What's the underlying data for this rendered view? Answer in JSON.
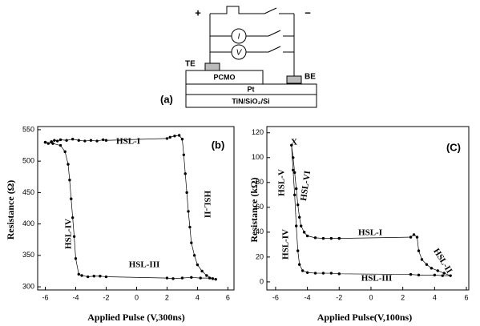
{
  "diagram": {
    "label": "(a)",
    "plus": "+",
    "minus": "−",
    "current": "I",
    "voltage": "V",
    "top_electrode": "TE",
    "bottom_electrode": "BE",
    "layers": [
      "PCMO",
      "Pt",
      "TiN/SiO₂/Si"
    ]
  },
  "chart_data": [
    {
      "type": "line",
      "label": "(b)",
      "xlabel": "Applied Pulse (V,300ns)",
      "ylabel": "Resistance (Ω)",
      "color": "#000000",
      "annotations": [
        "HSL-I",
        "HSL-II",
        "HSL-III",
        "HSL-IV"
      ],
      "xlim": [
        -6.5,
        6.4
      ],
      "xticks": [
        -6,
        -4,
        -2,
        0,
        2,
        4,
        6
      ],
      "ylim": [
        295,
        555
      ],
      "yticks": [
        300,
        350,
        400,
        450,
        500,
        550
      ],
      "x": [
        -6.0,
        -5.8,
        -5.6,
        -5.4,
        -5.2,
        -5.0,
        -4.6,
        -4.2,
        -3.8,
        -3.4,
        -3.0,
        -2.6,
        -2.2,
        -2.0,
        2.0,
        2.2,
        2.5,
        2.8,
        3.0,
        3.1,
        3.2,
        3.3,
        3.4,
        3.5,
        3.6,
        3.8,
        4.0,
        4.3,
        4.6,
        5.0,
        5.2,
        4.8,
        4.2,
        3.6,
        3.0,
        2.4,
        2.0,
        -2.0,
        -2.4,
        -2.8,
        -3.2,
        -3.6,
        -3.8,
        -4.0,
        -4.1,
        -4.2,
        -4.3,
        -4.4,
        -4.5,
        -4.7,
        -5.0,
        -5.5,
        -6.0
      ],
      "values": [
        530,
        528,
        531,
        533,
        532,
        534,
        533,
        535,
        533,
        532,
        533,
        532,
        534,
        533,
        536,
        538,
        540,
        541,
        535,
        510,
        480,
        450,
        420,
        395,
        370,
        350,
        335,
        325,
        318,
        313,
        312,
        314,
        314,
        315,
        314,
        313,
        314,
        316,
        317,
        317,
        316,
        318,
        320,
        345,
        380,
        410,
        440,
        470,
        495,
        515,
        525,
        528,
        530
      ]
    },
    {
      "type": "line",
      "label": "(C)",
      "xlabel": "Applied Pulse(V,100ns)",
      "ylabel": "Resistance (kΩ)",
      "color": "#000000",
      "annotations": [
        "X",
        "HSL-V",
        "HSL-VI",
        "HSL-I",
        "HSL-II",
        "HSL-III",
        "HSL-IV"
      ],
      "xlim": [
        -6.55,
        6.15
      ],
      "xticks": [
        -6,
        -4,
        -2,
        0,
        2,
        4,
        6
      ],
      "ylim": [
        -6.5,
        125
      ],
      "yticks": [
        0,
        20,
        40,
        60,
        80,
        100,
        120
      ],
      "x": [
        -2.0,
        2.5,
        2.7,
        2.9,
        3.0,
        3.2,
        3.5,
        3.8,
        4.2,
        4.6,
        5.0,
        4.5,
        4.0,
        3.0,
        2.5,
        -2.0,
        -2.5,
        -3.0,
        -3.5,
        -4.0,
        -4.3,
        -4.5,
        -4.6,
        -4.7,
        -4.8,
        -4.9,
        -5.0,
        -4.9,
        -4.8,
        -4.7,
        -4.6,
        -4.5,
        -4.4,
        -4.2,
        -4.0,
        -3.5,
        -3.0,
        -2.5,
        -2.0
      ],
      "values": [
        35,
        36,
        38,
        36,
        25,
        18,
        14,
        11,
        9,
        7,
        5,
        5,
        5.5,
        5.5,
        6,
        6.5,
        7,
        7,
        7,
        7.5,
        9,
        14,
        25,
        45,
        70,
        90,
        110,
        100,
        88,
        75,
        62,
        52,
        45,
        40,
        37,
        35.5,
        35,
        35,
        35
      ]
    }
  ]
}
